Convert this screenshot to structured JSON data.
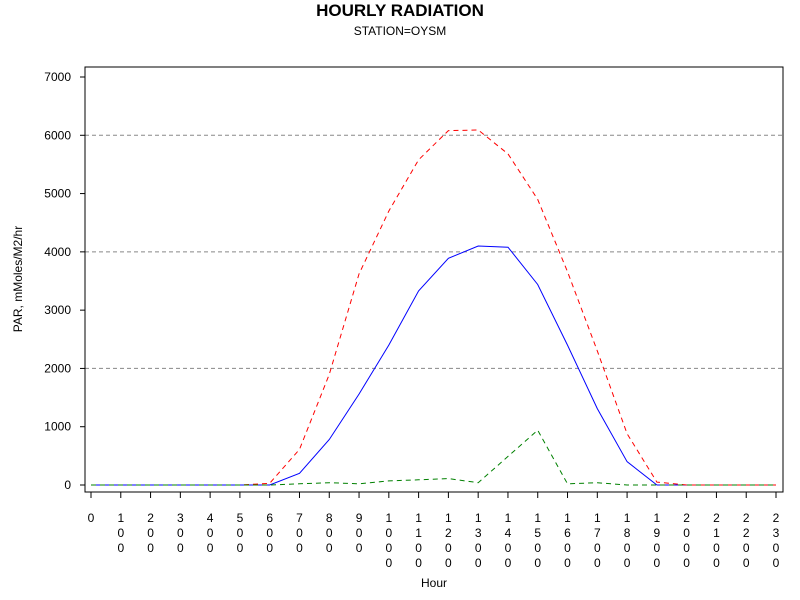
{
  "chart_data": {
    "type": "line",
    "title": "HOURLY RADIATION",
    "subtitle": "STATION=OYSM",
    "xlabel": "Hour",
    "ylabel": "PAR, mMoles/M2/hr",
    "xlim": [
      0,
      2300
    ],
    "ylim": [
      0,
      7000
    ],
    "yticks": [
      0,
      1000,
      2000,
      3000,
      4000,
      5000,
      6000,
      7000
    ],
    "xticks": [
      0,
      100,
      200,
      300,
      400,
      500,
      600,
      700,
      800,
      900,
      1000,
      1100,
      1200,
      1300,
      1400,
      1500,
      1600,
      1700,
      1800,
      1900,
      2000,
      2100,
      2200,
      2300
    ],
    "reference_lines": [
      2000,
      4000,
      6000
    ],
    "grid": false,
    "x": [
      0,
      100,
      200,
      300,
      400,
      500,
      600,
      700,
      800,
      900,
      1000,
      1100,
      1200,
      1300,
      1400,
      1500,
      1600,
      1700,
      1800,
      1900,
      2000,
      2100,
      2200,
      2300
    ],
    "series": [
      {
        "color": "#0000ff",
        "dash": "solid",
        "values": [
          0,
          0,
          0,
          0,
          0,
          0,
          0,
          200,
          780,
          1560,
          2400,
          3330,
          3890,
          4100,
          4080,
          3440,
          2400,
          1310,
          400,
          0,
          0,
          0,
          0,
          0
        ]
      },
      {
        "color": "#ff0000",
        "dash": "dashed",
        "values": [
          0,
          0,
          0,
          0,
          0,
          0,
          30,
          610,
          1900,
          3620,
          4700,
          5580,
          6080,
          6090,
          5680,
          4900,
          3660,
          2300,
          880,
          50,
          0,
          0,
          0,
          0
        ]
      },
      {
        "color": "#008000",
        "dash": "dashed",
        "values": [
          0,
          0,
          0,
          0,
          0,
          0,
          0,
          20,
          40,
          20,
          70,
          90,
          110,
          40,
          490,
          940,
          20,
          40,
          0,
          0,
          0,
          0,
          0,
          0
        ]
      }
    ]
  }
}
